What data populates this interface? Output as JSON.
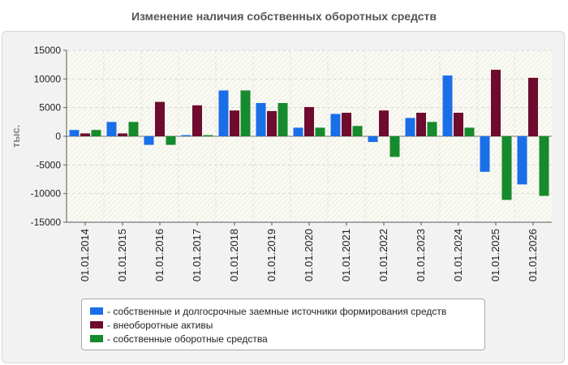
{
  "title": "Изменение наличия собственных оборотных средств",
  "chart_data": {
    "type": "bar",
    "title": "Изменение наличия собственных оборотных средств",
    "ylabel": "тыс.",
    "xlabel": "",
    "ylim": [
      -15000,
      15000
    ],
    "yticks": [
      15000,
      10000,
      5000,
      0,
      -5000,
      -10000,
      -15000
    ],
    "grid": true,
    "legend_position": "bottom",
    "categories": [
      "01.01.2014",
      "01.01.2015",
      "01.01.2016",
      "01.01.2017",
      "01.01.2018",
      "01.01.2019",
      "01.01.2020",
      "01.01.2021",
      "01.01.2022",
      "01.01.2023",
      "01.01.2024",
      "01.01.2025",
      "01.01.2026"
    ],
    "series": [
      {
        "name": "- собственные и долгосрочные заемные источники формирования средств",
        "color": "#1a6fe8",
        "values": [
          1100,
          2500,
          -1500,
          200,
          8000,
          5800,
          1500,
          3900,
          -1000,
          3200,
          10600,
          -6200,
          -8400
        ]
      },
      {
        "name": "- внеоборотные активы",
        "color": "#6e0b2e",
        "values": [
          500,
          500,
          6000,
          5400,
          4500,
          4400,
          5100,
          4100,
          4500,
          4100,
          4100,
          11600,
          10200
        ]
      },
      {
        "name": "- собственные оборотные средства",
        "color": "#168a2c",
        "values": [
          1100,
          2500,
          -1500,
          200,
          8000,
          5800,
          1500,
          1800,
          -3600,
          2500,
          1500,
          -11100,
          -10400
        ]
      }
    ]
  }
}
